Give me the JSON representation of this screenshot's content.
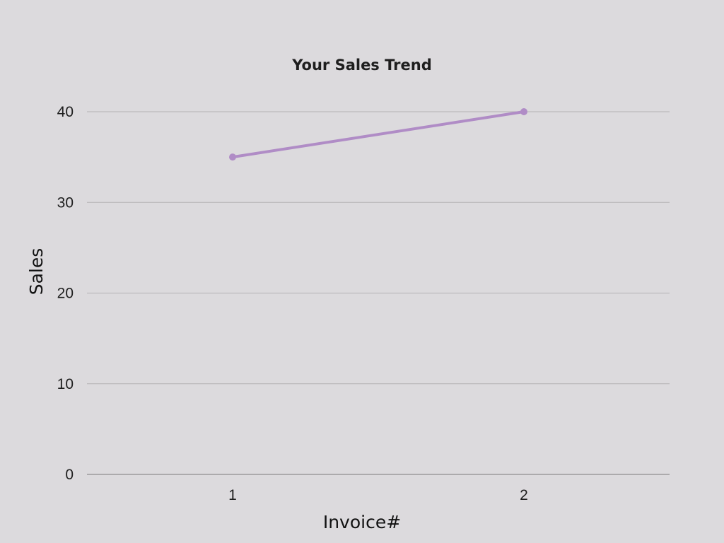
{
  "chart_data": {
    "type": "line",
    "title": "Your Sales Trend",
    "xlabel": "Invoice#",
    "ylabel": "Sales",
    "categories": [
      "1",
      "2"
    ],
    "series": [
      {
        "values": [
          35,
          40
        ],
        "color": "#b08cc6"
      }
    ],
    "ylim": [
      0,
      40
    ],
    "yticks": [
      "0",
      "10",
      "20",
      "30",
      "40"
    ],
    "ytick_values": [
      0,
      10,
      20,
      30,
      40
    ],
    "grid": true,
    "gridline_color": "#b3b1b4",
    "baseline_color": "#8f8d90",
    "background": "#dcdadd"
  }
}
